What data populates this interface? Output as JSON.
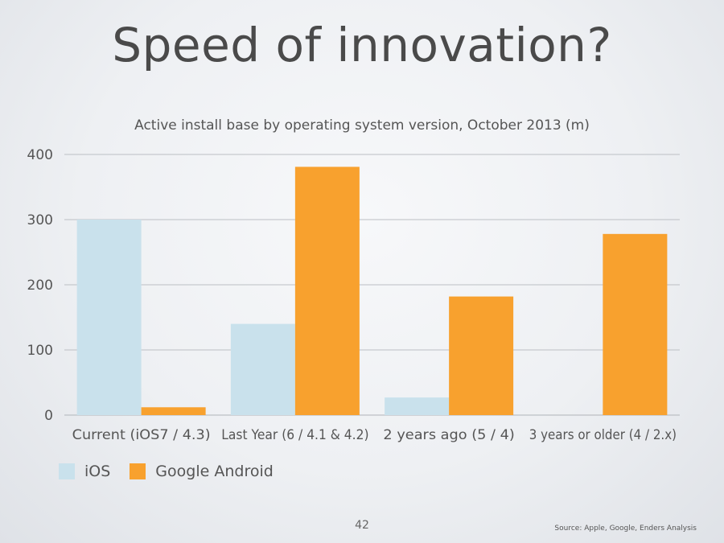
{
  "slide": {
    "title": "Speed of innovation?",
    "page_number": "42",
    "source": "Source: Apple, Google, Enders Analysis"
  },
  "colors": {
    "ios": "#c9e1ec",
    "android": "#f8a12e",
    "grid": "#bcbfc4",
    "axis_text": "#555555"
  },
  "chart_data": {
    "type": "bar",
    "title": "Active install base by operating system version, October 2013 (m)",
    "xlabel": "",
    "ylabel": "",
    "categories": [
      "Current (iOS7 / 4.3)",
      "Last Year (6 / 4.1 & 4.2)",
      "2 years ago (5 / 4)",
      "3 years or older (4 / 2.x)"
    ],
    "series": [
      {
        "name": "iOS",
        "values": [
          300,
          140,
          27,
          0
        ]
      },
      {
        "name": "Google Android",
        "values": [
          12,
          381,
          182,
          278
        ]
      }
    ],
    "ylim": [
      0,
      400
    ],
    "yticks": [
      0,
      100,
      200,
      300,
      400
    ],
    "grid": true,
    "legend": "bottom-left"
  }
}
